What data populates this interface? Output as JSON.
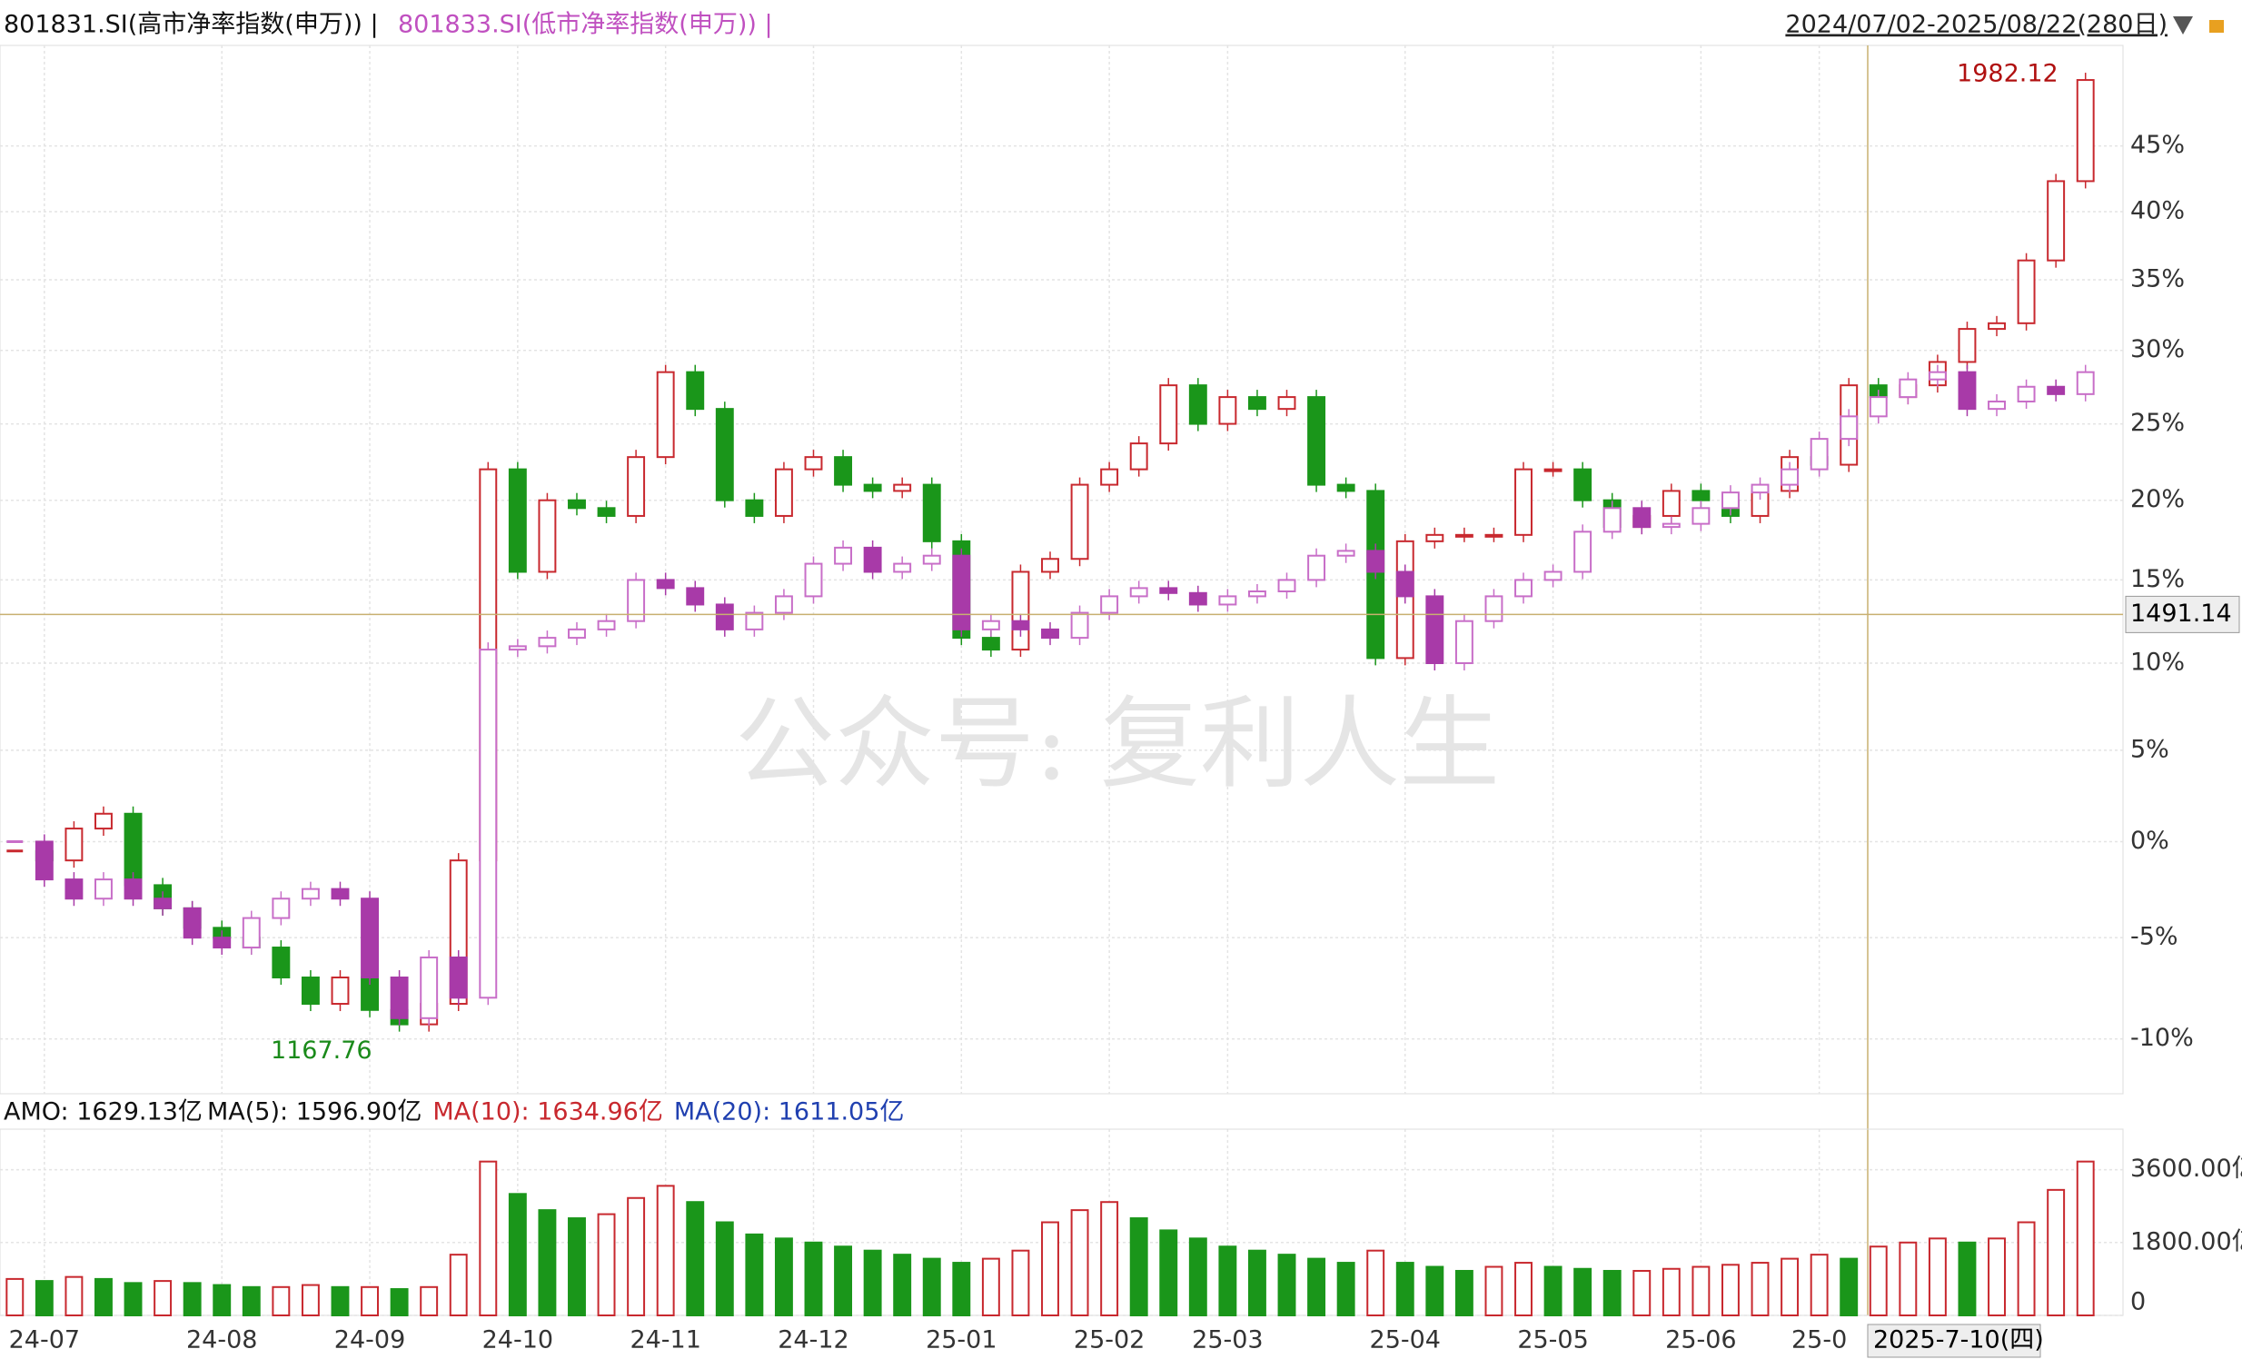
{
  "header": {
    "series1": "801831.SI(高市净率指数(申万)) |",
    "series2": "801833.SI(低市净率指数(申万)) |",
    "range": "2024/07/02-2025/08/22(280日)"
  },
  "watermark": "公众号: 复利人生",
  "chart_data": [
    {
      "type": "candlestick",
      "log_scale": true,
      "grid": true,
      "categories": [
        null,
        "24-07",
        null,
        null,
        null,
        null,
        null,
        "24-08",
        null,
        null,
        null,
        null,
        "24-09",
        null,
        null,
        null,
        null,
        "24-10",
        null,
        null,
        null,
        null,
        "24-11",
        null,
        null,
        null,
        null,
        "24-12",
        null,
        null,
        null,
        null,
        "25-01",
        null,
        null,
        null,
        null,
        "25-02",
        null,
        null,
        null,
        "25-03",
        null,
        null,
        null,
        null,
        null,
        "25-04",
        null,
        null,
        null,
        null,
        "25-05",
        null,
        null,
        null,
        null,
        "25-06",
        null,
        null,
        null,
        "25-0",
        null,
        null,
        null,
        null,
        null,
        null,
        null,
        null,
        null
      ],
      "series": [
        {
          "name": "801831.SI(高市净率指数(申万))",
          "up_color": "#c8282e",
          "down_color": "#1a961a",
          "values": [
            -0.5,
            -1,
            0.7,
            1.5,
            -2.3,
            -3.5,
            -4.5,
            -5,
            -5.5,
            -7,
            -8.3,
            -7,
            -8.6,
            -9.3,
            -8.3,
            -1,
            22,
            15.5,
            20,
            19.5,
            19,
            22.8,
            28.5,
            26,
            20,
            19,
            22,
            22.8,
            21,
            20.6,
            21,
            17.4,
            11.5,
            10.8,
            15.5,
            16.3,
            21,
            22,
            23.7,
            27.6,
            25,
            26.8,
            26,
            26.8,
            21,
            20.6,
            10.3,
            17.4,
            17.8,
            17.8,
            17.8,
            22,
            22,
            20,
            18.3,
            19,
            20.6,
            20,
            19,
            20.6,
            22.8,
            22.3,
            27.6,
            26.8,
            27.6,
            29.2,
            31.5,
            31.9,
            36.4,
            42.3,
            50.2
          ]
        },
        {
          "name": "801833.SI(低市净率指数(申万))",
          "up_color": "#c86ec8",
          "down_color": "#a83aa8",
          "values": [
            0,
            -2,
            -3,
            -2,
            -3,
            -3.5,
            -5,
            -5.5,
            -4,
            -3,
            -2.5,
            -3,
            -7,
            -9,
            -6,
            -8,
            10.8,
            11,
            11.5,
            12,
            12.5,
            15,
            14.5,
            13.5,
            12,
            13,
            14,
            16,
            17,
            15.5,
            16,
            16.5,
            12,
            12.5,
            12,
            11.5,
            13,
            14,
            14.5,
            14.2,
            13.5,
            14,
            14.3,
            15,
            16.5,
            16.8,
            15.5,
            14,
            10,
            12.5,
            14,
            15,
            15.5,
            18,
            19.5,
            18.3,
            18.5,
            19.5,
            20.5,
            21,
            22,
            24,
            25.5,
            26.8,
            28,
            28.5,
            26,
            26.5,
            27.5,
            27,
            28.5
          ]
        }
      ],
      "ylim": [
        -12.6,
        53
      ],
      "yticks": [
        {
          "value": 45,
          "label": "45%"
        },
        {
          "value": 40,
          "label": "40%"
        },
        {
          "value": 35,
          "label": "35%"
        },
        {
          "value": 30,
          "label": "30%"
        },
        {
          "value": 25,
          "label": "25%"
        },
        {
          "value": 20,
          "label": "20%"
        },
        {
          "value": 15,
          "label": "15%"
        },
        {
          "value": 10,
          "label": "10%"
        },
        {
          "value": 5,
          "label": "5%"
        },
        {
          "value": 0,
          "label": "0%"
        },
        {
          "value": -5,
          "label": "-5%"
        },
        {
          "value": -10,
          "label": "-10%"
        }
      ],
      "annotations": {
        "max": "1982.12",
        "min": "1167.76"
      },
      "crosshair": {
        "y": {
          "value": 12.9,
          "label": "1491.14"
        },
        "x_label": "2025-7-10(四)"
      }
    },
    {
      "type": "bar",
      "title": "AMO: 1629.13亿",
      "ma_labels": [
        {
          "text": "MA(5): 1596.90亿",
          "color": "#111111"
        },
        {
          "text": "MA(10): 1634.96亿",
          "color": "#c8282e"
        },
        {
          "text": "MA(20): 1611.05亿",
          "color": "#2040b0"
        }
      ],
      "up_color": "#c8282e",
      "down_color": "#1a961a",
      "values": [
        900,
        850,
        950,
        900,
        800,
        850,
        800,
        750,
        700,
        700,
        750,
        700,
        700,
        650,
        700,
        1500,
        3800,
        3000,
        2600,
        2400,
        2500,
        2900,
        3200,
        2800,
        2300,
        2000,
        1900,
        1800,
        1700,
        1600,
        1500,
        1400,
        1300,
        1400,
        1600,
        2300,
        2600,
        2800,
        2400,
        2100,
        1900,
        1700,
        1600,
        1500,
        1400,
        1300,
        1600,
        1300,
        1200,
        1100,
        1200,
        1300,
        1200,
        1150,
        1100,
        1100,
        1150,
        1200,
        1250,
        1300,
        1400,
        1500,
        1400,
        1700,
        1800,
        1900,
        1800,
        1900,
        2300,
        3100,
        3800
      ],
      "ylim": [
        0,
        4600
      ],
      "yticks": [
        0,
        {
          "value": 1800,
          "label": "1800.00亿"
        },
        {
          "value": 3600,
          "label": "3600.00亿"
        }
      ]
    }
  ]
}
